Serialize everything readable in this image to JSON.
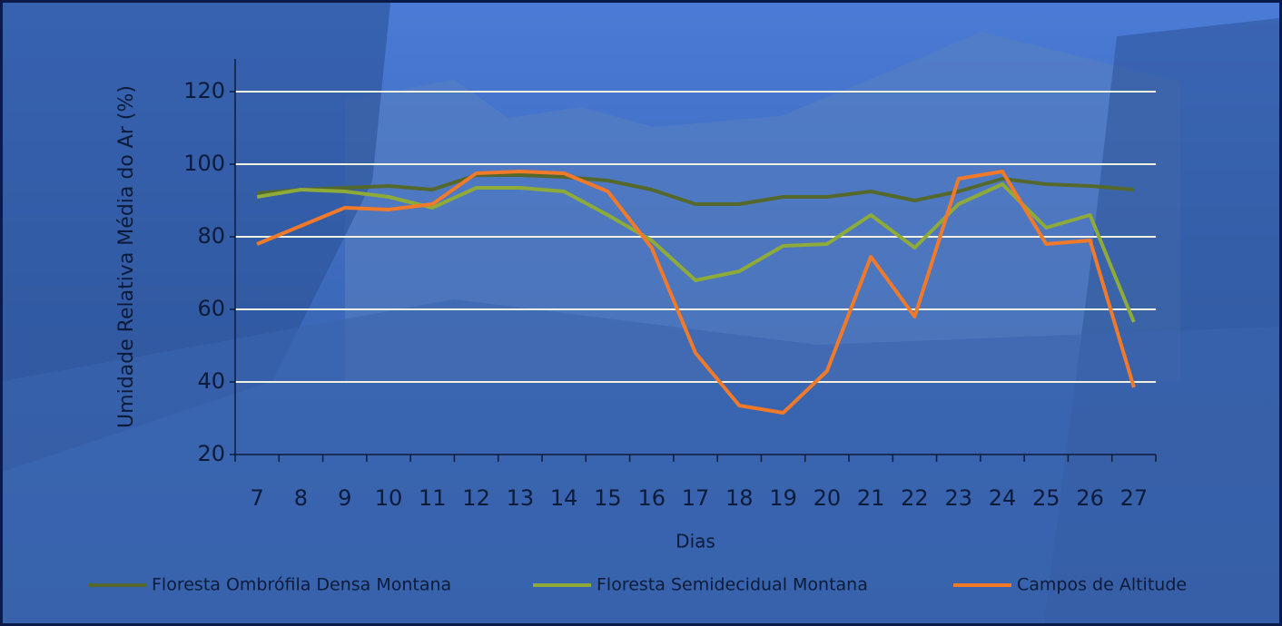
{
  "chart_data": {
    "type": "line",
    "x_label": "Dias",
    "y_label": "Umidade Relativa Média do Ar (%)",
    "categories": [
      "7",
      "8",
      "9",
      "10",
      "11",
      "12",
      "13",
      "14",
      "15",
      "16",
      "17",
      "18",
      "19",
      "20",
      "21",
      "22",
      "23",
      "24",
      "25",
      "26",
      "27"
    ],
    "series": [
      {
        "name": "Floresta Ombrófila Densa Montana",
        "color": "#55682c",
        "values": [
          92,
          93,
          93.5,
          94,
          93,
          97,
          97,
          96.5,
          95.5,
          93,
          89,
          89,
          91,
          91,
          92.5,
          90,
          92.5,
          96,
          94.5,
          94,
          93
        ]
      },
      {
        "name": "Floresta Semidecidual Montana",
        "color": "#8eaa38",
        "values": [
          91,
          93,
          92.5,
          91,
          88,
          93.5,
          93.5,
          92.5,
          86,
          79,
          68,
          70.5,
          77.5,
          78,
          86,
          77,
          89,
          94.5,
          82.5,
          86,
          56.5
        ]
      },
      {
        "name": "Campos de Altitude",
        "color": "#f07a2a",
        "values": [
          78,
          83,
          88,
          87.5,
          89,
          97.5,
          98,
          97.5,
          92.5,
          77,
          48,
          33.5,
          31.5,
          43,
          74.5,
          58,
          96,
          98,
          78,
          79,
          38.5
        ]
      }
    ],
    "ylim": [
      20,
      130
    ],
    "yticks": [
      20,
      40,
      60,
      80,
      100,
      120
    ],
    "grid": true
  }
}
